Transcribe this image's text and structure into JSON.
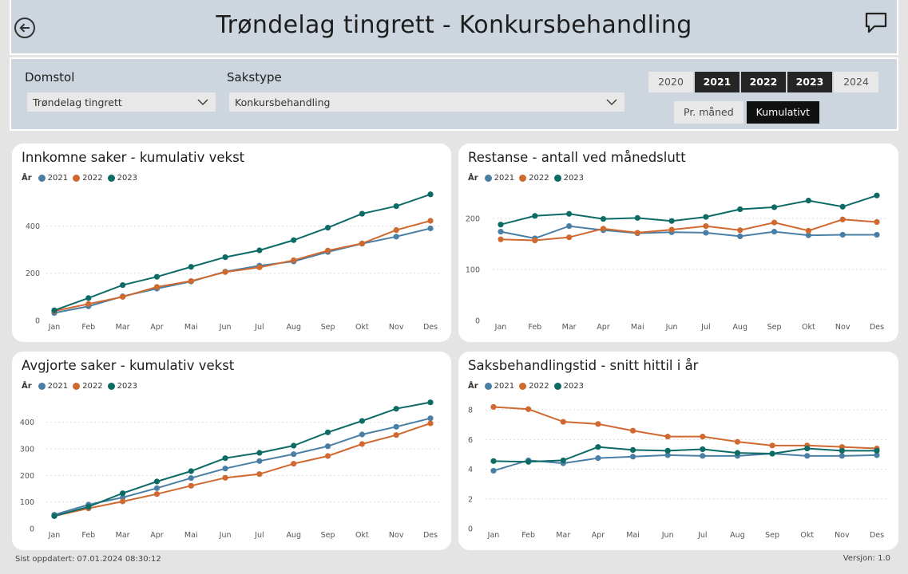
{
  "header": {
    "title": "Trøndelag tingrett - Konkursbehandling",
    "back_icon": "arrow-left-circle-icon",
    "chat_icon": "speech-bubble-icon"
  },
  "filters": {
    "court": {
      "label": "Domstol",
      "value": "Trøndelag tingrett"
    },
    "casetype": {
      "label": "Sakstype",
      "value": "Konkursbehandling"
    },
    "years": [
      {
        "label": "2020",
        "active": false
      },
      {
        "label": "2021",
        "active": true
      },
      {
        "label": "2022",
        "active": true
      },
      {
        "label": "2023",
        "active": true
      },
      {
        "label": "2024",
        "active": false
      }
    ],
    "modes": [
      {
        "label": "Pr. måned",
        "active": false
      },
      {
        "label": "Kumulativt",
        "active": true
      }
    ]
  },
  "colors": {
    "2021": "#4a7fa5",
    "2022": "#d0692f",
    "2023": "#0d6b66"
  },
  "chart_data": [
    {
      "type": "line",
      "title": "Innkomne saker - kumulativ vekst",
      "legend_title": "År",
      "categories": [
        "Jan",
        "Feb",
        "Mar",
        "Apr",
        "Mai",
        "Jun",
        "Jul",
        "Aug",
        "Sep",
        "Okt",
        "Nov",
        "Des"
      ],
      "yticks": [
        0,
        200,
        400
      ],
      "ylim": [
        0,
        540
      ],
      "series": [
        {
          "name": "2021",
          "values": [
            32,
            60,
            102,
            135,
            165,
            207,
            232,
            250,
            290,
            325,
            355,
            390
          ]
        },
        {
          "name": "2022",
          "values": [
            40,
            70,
            100,
            142,
            167,
            205,
            225,
            255,
            296,
            326,
            383,
            422
          ]
        },
        {
          "name": "2023",
          "values": [
            43,
            95,
            150,
            185,
            227,
            268,
            297,
            340,
            393,
            452,
            484,
            534
          ]
        }
      ]
    },
    {
      "type": "line",
      "title": "Restanse - antall ved månedslutt",
      "legend_title": "År",
      "categories": [
        "Jan",
        "Feb",
        "Mar",
        "Apr",
        "Mai",
        "Jun",
        "Jul",
        "Aug",
        "Sep",
        "Okt",
        "Nov",
        "Des"
      ],
      "yticks": [
        0,
        100,
        200
      ],
      "ylim": [
        0,
        250
      ],
      "series": [
        {
          "name": "2021",
          "values": [
            174,
            161,
            185,
            177,
            171,
            173,
            172,
            165,
            174,
            167,
            168,
            168
          ]
        },
        {
          "name": "2022",
          "values": [
            159,
            157,
            163,
            180,
            172,
            178,
            185,
            177,
            192,
            176,
            198,
            193
          ]
        },
        {
          "name": "2023",
          "values": [
            188,
            205,
            209,
            199,
            201,
            195,
            203,
            218,
            222,
            235,
            223,
            245
          ]
        }
      ]
    },
    {
      "type": "line",
      "title": "Avgjorte saker - kumulativ vekst",
      "legend_title": "År",
      "categories": [
        "Jan",
        "Feb",
        "Mar",
        "Apr",
        "Mai",
        "Jun",
        "Jul",
        "Aug",
        "Sep",
        "Okt",
        "Nov",
        "Des"
      ],
      "yticks": [
        0,
        100,
        200,
        300,
        400
      ],
      "ylim": [
        0,
        480
      ],
      "series": [
        {
          "name": "2021",
          "values": [
            52,
            90,
            117,
            152,
            190,
            226,
            254,
            280,
            310,
            354,
            383,
            415
          ]
        },
        {
          "name": "2022",
          "values": [
            47,
            76,
            102,
            130,
            161,
            191,
            205,
            244,
            273,
            318,
            352,
            396
          ]
        },
        {
          "name": "2023",
          "values": [
            47,
            82,
            133,
            177,
            216,
            265,
            285,
            312,
            362,
            405,
            451,
            475
          ]
        }
      ]
    },
    {
      "type": "line",
      "title": "Saksbehandlingstid - snitt hittil i år",
      "legend_title": "År",
      "categories": [
        "Jan",
        "Feb",
        "Mar",
        "Apr",
        "Mai",
        "Jun",
        "Jul",
        "Aug",
        "Sep",
        "Okt",
        "Nov",
        "Des"
      ],
      "yticks": [
        0,
        2,
        4,
        6,
        8
      ],
      "ylim": [
        0,
        8.6
      ],
      "series": [
        {
          "name": "2021",
          "values": [
            3.9,
            4.6,
            4.4,
            4.75,
            4.85,
            4.95,
            4.9,
            4.9,
            5.05,
            4.9,
            4.9,
            4.95
          ]
        },
        {
          "name": "2022",
          "values": [
            8.2,
            8.05,
            7.2,
            7.05,
            6.6,
            6.2,
            6.2,
            5.85,
            5.6,
            5.6,
            5.5,
            5.4
          ]
        },
        {
          "name": "2023",
          "values": [
            4.55,
            4.5,
            4.6,
            5.5,
            5.3,
            5.25,
            5.35,
            5.1,
            5.05,
            5.4,
            5.25,
            5.25
          ]
        }
      ]
    }
  ],
  "footer": {
    "updated": "Sist oppdatert: 07.01.2024 08:30:12",
    "version": "Versjon: 1.0"
  }
}
